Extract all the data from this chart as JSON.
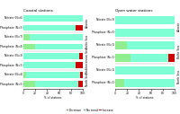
{
  "coastal_title": "Coastal stations",
  "open_title": "Open water stations",
  "coastal_groups": [
    "Atlantic",
    "Baltic Sea",
    "Mediterranean Sea",
    "North Sea"
  ],
  "coastal_bars": [
    {
      "label": "Nitrate (N=6)",
      "decrease": 0,
      "no_trend": 100,
      "increase": 0
    },
    {
      "label": "Phosphate (N=5)",
      "decrease": 0,
      "no_trend": 88,
      "increase": 12
    },
    {
      "label": "Nitrate (N=7)",
      "decrease": 10,
      "no_trend": 90,
      "increase": 0
    },
    {
      "label": "Phosphate (N=4)",
      "decrease": 20,
      "no_trend": 80,
      "increase": 0
    },
    {
      "label": "Nitrate (N=3)",
      "decrease": 0,
      "no_trend": 94,
      "increase": 6
    },
    {
      "label": "Phosphate (N=5)",
      "decrease": 0,
      "no_trend": 88,
      "increase": 12
    },
    {
      "label": "Nitrate (N=4)",
      "decrease": 5,
      "no_trend": 90,
      "increase": 5
    },
    {
      "label": "Phosphate (N=5)",
      "decrease": 20,
      "no_trend": 72,
      "increase": 8
    }
  ],
  "coastal_groups_data": [
    {
      "name": "Atlantic",
      "bars": [
        0,
        1
      ]
    },
    {
      "name": "Baltic Sea",
      "bars": [
        2,
        3
      ]
    },
    {
      "name": "Mediterranean Sea",
      "bars": [
        4,
        5
      ]
    },
    {
      "name": "North Sea",
      "bars": [
        6,
        7
      ]
    }
  ],
  "open_groups": [
    "Atlantic",
    "Baltic Sea",
    "North Sea"
  ],
  "open_bars": [
    {
      "label": "Nitrate (N=3)",
      "decrease": 0,
      "no_trend": 100,
      "increase": 0
    },
    {
      "label": "Phosphate (N=3)",
      "decrease": 0,
      "no_trend": 100,
      "increase": 0
    },
    {
      "label": "Nitrate (N=1)",
      "decrease": 20,
      "no_trend": 80,
      "increase": 0
    },
    {
      "label": "Phosphate (N=1)",
      "decrease": 25,
      "no_trend": 65,
      "increase": 10
    },
    {
      "label": "Nitrate (N=1)",
      "decrease": 0,
      "no_trend": 100,
      "increase": 0
    },
    {
      "label": "Phosphate (N=1)",
      "decrease": 15,
      "no_trend": 85,
      "increase": 0
    }
  ],
  "open_groups_data": [
    {
      "name": "Atlantic",
      "bars": [
        0,
        1
      ]
    },
    {
      "name": "Baltic Sea",
      "bars": [
        2,
        3
      ]
    },
    {
      "name": "North Sea",
      "bars": [
        4,
        5
      ]
    }
  ],
  "color_decrease": "#90ee90",
  "color_no_trend": "#7fffd4",
  "color_increase": "#cc0000",
  "xlabel": "% of stations",
  "xlim": [
    0,
    100
  ],
  "xticks": [
    0,
    20,
    40,
    60,
    80,
    100
  ]
}
